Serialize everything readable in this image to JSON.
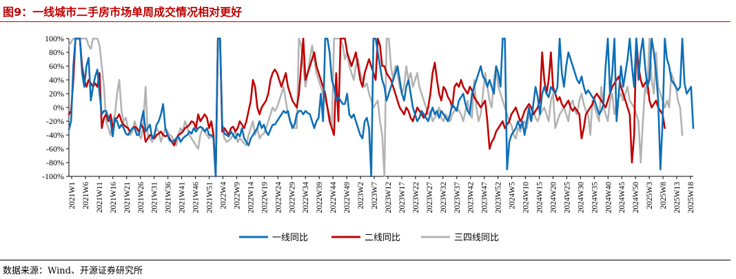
{
  "title": "图9：一线城市二手房市场单周成交情况相对更好",
  "source": "数据来源：Wind、开源证券研究所",
  "chart_data": {
    "type": "line",
    "title": "",
    "xlabel": "",
    "ylabel": "",
    "ylim": [
      -100,
      100
    ],
    "ytick_labels": [
      "100%",
      "80%",
      "60%",
      "40%",
      "20%",
      "0%",
      "-20%",
      "-40%",
      "-60%",
      "-80%",
      "-100%"
    ],
    "x_tick_labels": [
      "2021W1",
      "2021W6",
      "2021W11",
      "2021W16",
      "2021W21",
      "2021W26",
      "2021W31",
      "2021W36",
      "2021W41",
      "2021W46",
      "2021W51",
      "2022W4",
      "2022W9",
      "2022W14",
      "2022W19",
      "2022W24",
      "2022W29",
      "2022W34",
      "2022W39",
      "2022W44",
      "2022W49",
      "2023W2",
      "2023W7",
      "2023W12",
      "2023W17",
      "2023W22",
      "2023W27",
      "2023W32",
      "2023W37",
      "2023W42",
      "2023W47",
      "2023W52",
      "2024W5",
      "2024W10",
      "2024W15",
      "2024W20",
      "2024W25",
      "2024W30",
      "2024W35",
      "2024W40",
      "2024W45",
      "2024W50",
      "2025W3",
      "2025W8",
      "2025W13",
      "2025W18"
    ],
    "grid": false,
    "legend_position": "bottom",
    "series": [
      {
        "name": "一线同比",
        "color": "#0d6fb8",
        "values": [
          -32,
          -20,
          60,
          100,
          100,
          100,
          50,
          30,
          60,
          72,
          10,
          30,
          45,
          55,
          20,
          -10,
          -5,
          -5,
          -15,
          -20,
          -42,
          -15,
          -20,
          -30,
          -25,
          -30,
          -38,
          -40,
          -35,
          -30,
          -30,
          -40,
          -40,
          -20,
          -5,
          -35,
          -30,
          -25,
          -45,
          -40,
          -25,
          -20,
          -10,
          5,
          -30,
          -40,
          -48,
          -50,
          -48,
          -45,
          -42,
          -50,
          -45,
          -42,
          -40,
          -35,
          -38,
          -30,
          -35,
          -30,
          -28,
          -30,
          -35,
          -30,
          -40,
          -40,
          -45,
          -100,
          100,
          100,
          -25,
          -38,
          -40,
          -42,
          -35,
          -40,
          -45,
          -38,
          -42,
          -30,
          -45,
          -50,
          -55,
          -45,
          -40,
          -35,
          -30,
          -20,
          -30,
          -25,
          -35,
          -40,
          -32,
          -25,
          -25,
          -20,
          -15,
          -10,
          -5,
          -8,
          -5,
          -20,
          -30,
          -25,
          -10,
          -5,
          -5,
          -10,
          -5,
          -8,
          -10,
          -20,
          -30,
          -20,
          -15,
          20,
          -20,
          100,
          100,
          80,
          40,
          30,
          10,
          15,
          10,
          5,
          5,
          20,
          -10,
          -15,
          -10,
          -20,
          -30,
          -40,
          -45,
          -20,
          -15,
          -30,
          -100,
          100,
          100,
          80,
          60,
          40,
          30,
          10,
          20,
          30,
          40,
          50,
          60,
          40,
          20,
          10,
          30,
          40,
          20,
          0,
          -10,
          -20,
          -15,
          -5,
          -10,
          -15,
          -20,
          -10,
          0,
          -10,
          -5,
          -15,
          -5,
          -10,
          -15,
          -20,
          -10,
          5,
          0,
          -5,
          10,
          15,
          20,
          5,
          -5,
          -10,
          20,
          30,
          40,
          50,
          60,
          45,
          40,
          30,
          40,
          30,
          20,
          60,
          50,
          30,
          100,
          100,
          -90,
          -50,
          -40,
          -35,
          -30,
          -20,
          -30,
          -20,
          -40,
          -20,
          0,
          -20,
          5,
          30,
          15,
          -10,
          20,
          30,
          20,
          15,
          30,
          25,
          20,
          30,
          100,
          50,
          30,
          60,
          80,
          70,
          60,
          50,
          40,
          35,
          45,
          30,
          20,
          25,
          20,
          15,
          10,
          0,
          -10,
          -5,
          5,
          60,
          100,
          20,
          50,
          100,
          -20,
          20,
          60,
          30,
          50,
          70,
          100,
          60,
          30,
          100,
          40,
          80,
          100,
          60,
          30,
          40,
          100,
          80,
          50,
          10,
          -90,
          -20,
          100,
          70,
          60,
          40,
          35,
          30,
          25,
          30,
          100,
          35,
          20,
          25,
          30,
          -30
        ]
      },
      {
        "name": "二线同比",
        "color": "#c00000",
        "values": [
          -10,
          -5,
          40,
          100,
          100,
          100,
          60,
          40,
          30,
          40,
          35,
          30,
          35,
          30,
          50,
          -30,
          -15,
          -10,
          -20,
          -10,
          -30,
          -20,
          -15,
          -10,
          -20,
          -25,
          -28,
          -30,
          -35,
          -30,
          -28,
          -30,
          -35,
          -25,
          -30,
          -50,
          -45,
          -40,
          -42,
          -45,
          -40,
          -38,
          -35,
          -40,
          -42,
          -40,
          -45,
          -50,
          -55,
          -45,
          -40,
          -38,
          -35,
          -30,
          -28,
          -25,
          -20,
          -22,
          -30,
          -10,
          -20,
          -15,
          -10,
          -15,
          -30,
          -20,
          -40,
          -100,
          100,
          100,
          -35,
          -30,
          -35,
          -40,
          -30,
          -28,
          -35,
          -30,
          -20,
          -25,
          -30,
          -20,
          -5,
          10,
          40,
          30,
          0,
          -10,
          0,
          5,
          10,
          20,
          40,
          50,
          55,
          50,
          40,
          30,
          40,
          50,
          30,
          20,
          10,
          5,
          0,
          20,
          60,
          100,
          40,
          50,
          60,
          70,
          80,
          60,
          50,
          40,
          30,
          20,
          0,
          -20,
          -30,
          -40,
          50,
          -20,
          100,
          100,
          100,
          80,
          70,
          60,
          70,
          80,
          60,
          40,
          30,
          50,
          60,
          70,
          60,
          50,
          40,
          100,
          90,
          60,
          60,
          50,
          45,
          40,
          30,
          20,
          10,
          0,
          -5,
          -10,
          0,
          -5,
          -15,
          -20,
          -10,
          0,
          -5,
          -10,
          -15,
          -10,
          0,
          20,
          50,
          65,
          40,
          20,
          10,
          30,
          25,
          15,
          10,
          0,
          30,
          35,
          30,
          40,
          30,
          25,
          20,
          30,
          25,
          15,
          10,
          5,
          0,
          5,
          10,
          -20,
          -60,
          -50,
          -45,
          -35,
          -30,
          -25,
          -20,
          -30,
          -25,
          -20,
          -10,
          -5,
          0,
          -10,
          -20,
          -15,
          -5,
          0,
          5,
          0,
          -10,
          -5,
          0,
          10,
          80,
          40,
          20,
          40,
          80,
          30,
          20,
          10,
          15,
          5,
          0,
          5,
          10,
          0,
          -5,
          0,
          -5,
          -10,
          -45,
          -30,
          -10,
          -5,
          0,
          5,
          15,
          20,
          15,
          10,
          5,
          0,
          10,
          20,
          30,
          35,
          40,
          45,
          30,
          20,
          10,
          0,
          -10,
          -80,
          -40,
          100,
          60,
          40,
          30,
          35,
          40,
          10,
          0,
          5,
          10,
          0,
          -5,
          -10,
          -30
        ]
      },
      {
        "name": "三四线同比",
        "color": "#b3b3b3",
        "values": [
          90,
          95,
          100,
          100,
          100,
          100,
          100,
          100,
          100,
          90,
          85,
          100,
          100,
          100,
          90,
          60,
          30,
          -20,
          -30,
          -40,
          -20,
          -10,
          20,
          40,
          -5,
          -20,
          -15,
          -30,
          -40,
          -35,
          -20,
          -30,
          -40,
          -45,
          -20,
          30,
          -40,
          -45,
          -50,
          -40,
          -30,
          -35,
          -50,
          -40,
          -30,
          -35,
          -40,
          -42,
          -50,
          -55,
          -40,
          -30,
          -35,
          -20,
          -28,
          -40,
          -45,
          -50,
          -55,
          -60,
          -40,
          -30,
          -35,
          -40,
          -45,
          -40,
          -45,
          -100,
          100,
          100,
          -30,
          -45,
          -50,
          -48,
          -45,
          -40,
          -35,
          -50,
          -45,
          -48,
          -52,
          -55,
          -40,
          -30,
          -20,
          -40,
          -30,
          -45,
          -40,
          -38,
          -30,
          -20,
          -10,
          0,
          -5,
          0,
          10,
          20,
          30,
          10,
          -10,
          -20,
          -25,
          -30,
          -30,
          100,
          90,
          60,
          30,
          50,
          70,
          90,
          70,
          50,
          40,
          30,
          20,
          10,
          0,
          -10,
          -30,
          100,
          100,
          100,
          100,
          90,
          70,
          80,
          60,
          50,
          40,
          60,
          70,
          50,
          40,
          30,
          35,
          20,
          10,
          0,
          5,
          10,
          -20,
          -40,
          -100,
          100,
          100,
          60,
          40,
          60,
          50,
          30,
          20,
          30,
          60,
          40,
          50,
          30,
          40,
          50,
          30,
          20,
          10,
          0,
          -10,
          -5,
          -20,
          -15,
          -10,
          0,
          -15,
          -20,
          -10,
          -15,
          -20,
          -10,
          -5,
          0,
          -5,
          -10,
          -20,
          -5,
          10,
          -10,
          -15,
          40,
          0,
          -20,
          -10,
          20,
          50,
          30,
          10,
          0,
          40,
          60,
          30,
          20,
          10,
          0,
          -10,
          -20,
          -25,
          -40,
          -45,
          -30,
          -35,
          -25,
          -20,
          -30,
          -10,
          -20,
          -5,
          -15,
          -20,
          -10,
          -5,
          0,
          -10,
          -20,
          10,
          20,
          -30,
          -20,
          -10,
          -5,
          0,
          -10,
          -20,
          5,
          10,
          -5,
          -10,
          10,
          20,
          5,
          -5,
          -10,
          -40,
          10,
          0,
          -10,
          -20,
          30,
          0,
          -10,
          -20,
          10,
          20,
          -10,
          5,
          15,
          20,
          10,
          20,
          30,
          10,
          5,
          0,
          -10,
          -20,
          -80,
          -20,
          30,
          20,
          100,
          40,
          20,
          80,
          30,
          20,
          10,
          0,
          10,
          0,
          50,
          40,
          30,
          10,
          0,
          -40
        ]
      }
    ]
  }
}
